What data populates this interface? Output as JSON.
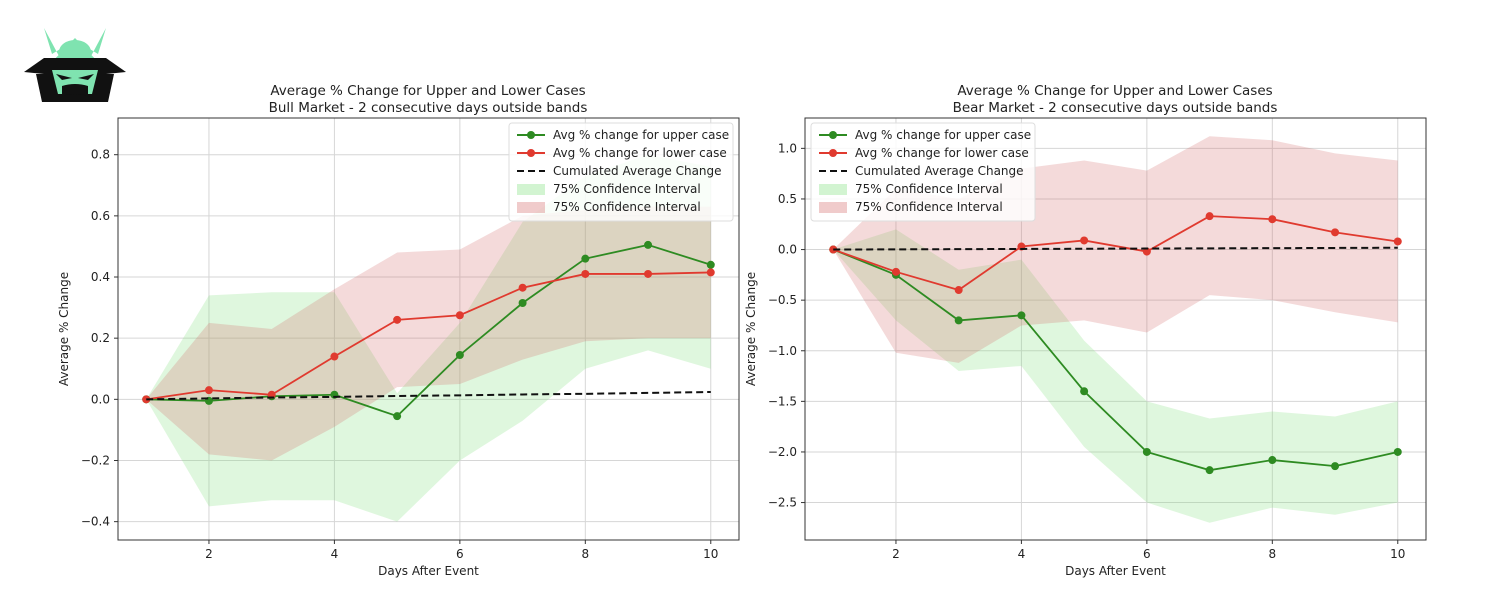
{
  "chart_data": [
    {
      "type": "line",
      "title": "Average % Change for Upper and Lower Cases",
      "subtitle": "Bull Market - 2 consecutive days outside bands",
      "xlabel": "Days After Event",
      "ylabel": "Average % Change",
      "xlim": [
        0.55,
        10.45
      ],
      "ylim": [
        -0.46,
        0.92
      ],
      "xticks": [
        2,
        4,
        6,
        8,
        10
      ],
      "yticks": [
        -0.4,
        -0.2,
        0.0,
        0.2,
        0.4,
        0.6,
        0.8
      ],
      "ytick_labels": [
        "−0.4",
        "−0.2",
        "0.0",
        "0.2",
        "0.4",
        "0.6",
        "0.8"
      ],
      "grid": true,
      "legend_position": "top-right",
      "x": [
        1,
        2,
        3,
        4,
        5,
        6,
        7,
        8,
        9,
        10
      ],
      "series": [
        {
          "name": "Avg % change for upper case",
          "color": "#2e8b22",
          "style": "line-marker",
          "values": [
            0.0,
            -0.005,
            0.01,
            0.015,
            -0.055,
            0.145,
            0.315,
            0.46,
            0.505,
            0.44
          ]
        },
        {
          "name": "Avg % change for lower case",
          "color": "#e03a2f",
          "style": "line-marker",
          "values": [
            0.0,
            0.03,
            0.015,
            0.14,
            0.26,
            0.275,
            0.365,
            0.41,
            0.41,
            0.415
          ]
        },
        {
          "name": "Cumulated Average Change",
          "color": "#111111",
          "style": "dashed",
          "values": [
            0.0,
            0.003,
            0.006,
            0.008,
            0.011,
            0.013,
            0.016,
            0.018,
            0.021,
            0.024
          ]
        }
      ],
      "bands": [
        {
          "name": "75% Confidence Interval",
          "color": "#7fe07a",
          "opacity": 0.25,
          "lower": [
            0.0,
            -0.35,
            -0.33,
            -0.33,
            -0.4,
            -0.2,
            -0.07,
            0.1,
            0.16,
            0.1
          ],
          "upper": [
            0.0,
            0.34,
            0.35,
            0.35,
            0.02,
            0.25,
            0.58,
            0.73,
            0.8,
            0.76
          ]
        },
        {
          "name": "75% Confidence Interval",
          "color": "#d46a6a",
          "opacity": 0.25,
          "lower": [
            0.0,
            -0.18,
            -0.2,
            -0.09,
            0.04,
            0.05,
            0.13,
            0.19,
            0.2,
            0.2
          ],
          "upper": [
            0.0,
            0.25,
            0.23,
            0.36,
            0.48,
            0.49,
            0.6,
            0.62,
            0.63,
            0.63
          ]
        }
      ]
    },
    {
      "type": "line",
      "title": "Average % Change for Upper and Lower Cases",
      "subtitle": "Bear Market - 2 consecutive days outside bands",
      "xlabel": "Days After Event",
      "ylabel": "Average % Change",
      "xlim": [
        0.55,
        10.45
      ],
      "ylim": [
        -2.87,
        1.3
      ],
      "xticks": [
        2,
        4,
        6,
        8,
        10
      ],
      "yticks": [
        -2.5,
        -2.0,
        -1.5,
        -1.0,
        -0.5,
        0.0,
        0.5,
        1.0
      ],
      "ytick_labels": [
        "−2.5",
        "−2.0",
        "−1.5",
        "−1.0",
        "−0.5",
        "0.0",
        "0.5",
        "1.0"
      ],
      "grid": true,
      "legend_position": "top-left",
      "x": [
        1,
        2,
        3,
        4,
        5,
        6,
        7,
        8,
        9,
        10
      ],
      "series": [
        {
          "name": "Avg % change for upper case",
          "color": "#2e8b22",
          "style": "line-marker",
          "values": [
            0.0,
            -0.25,
            -0.7,
            -0.65,
            -1.4,
            -2.0,
            -2.18,
            -2.08,
            -2.14,
            -2.0
          ]
        },
        {
          "name": "Avg % change for lower case",
          "color": "#e03a2f",
          "style": "line-marker",
          "values": [
            0.0,
            -0.22,
            -0.4,
            0.03,
            0.09,
            -0.02,
            0.33,
            0.3,
            0.17,
            0.08
          ]
        },
        {
          "name": "Cumulated Average Change",
          "color": "#111111",
          "style": "dashed",
          "values": [
            0.0,
            0.002,
            0.004,
            0.006,
            0.008,
            0.01,
            0.012,
            0.014,
            0.016,
            0.018
          ]
        }
      ],
      "bands": [
        {
          "name": "75% Confidence Interval",
          "color": "#7fe07a",
          "opacity": 0.25,
          "lower": [
            0.0,
            -0.7,
            -1.2,
            -1.15,
            -1.95,
            -2.5,
            -2.7,
            -2.55,
            -2.62,
            -2.5
          ],
          "upper": [
            0.0,
            0.2,
            -0.2,
            -0.1,
            -0.9,
            -1.5,
            -1.67,
            -1.6,
            -1.65,
            -1.5
          ]
        },
        {
          "name": "75% Confidence Interval",
          "color": "#d46a6a",
          "opacity": 0.25,
          "lower": [
            0.0,
            -1.02,
            -1.12,
            -0.75,
            -0.7,
            -0.82,
            -0.45,
            -0.5,
            -0.62,
            -0.72
          ],
          "upper": [
            0.0,
            0.6,
            0.5,
            0.8,
            0.88,
            0.78,
            1.12,
            1.08,
            0.95,
            0.88
          ]
        }
      ]
    }
  ]
}
